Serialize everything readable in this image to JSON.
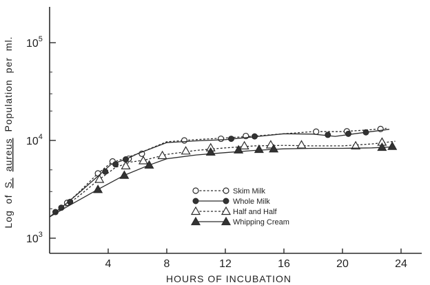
{
  "chart_data": {
    "type": "line",
    "title": "",
    "xlabel": "HOURS   OF   INCUBATION",
    "ylabel_parts": [
      "Log",
      "of",
      "S.",
      "aureus",
      "Population",
      "per",
      "ml."
    ],
    "xlim": [
      0,
      25
    ],
    "ylim": [
      1000,
      150000
    ],
    "yscale": "log",
    "grid": false,
    "legend_position": "center-right",
    "x_ticks": [
      4,
      8,
      12,
      16,
      20,
      24
    ],
    "x_tick_labels": [
      "4",
      "8",
      "12",
      "16",
      "20",
      "24"
    ],
    "y_ticks": [
      1000,
      10000,
      100000
    ],
    "y_tick_labels": [
      {
        "base": "10",
        "exp": "3"
      },
      {
        "base": "10",
        "exp": "4"
      },
      {
        "base": "10",
        "exp": "5"
      }
    ],
    "series": [
      {
        "name": "Skim  Milk",
        "marker": "open-circle",
        "line_style": "dashed",
        "line_x": [
          0,
          0.6,
          1.2,
          2.0,
          3.3,
          4.2,
          5.2,
          6.0,
          8.0,
          10.0,
          12.0,
          14.0,
          16.0,
          18.0,
          20.0,
          22.0,
          23.0
        ],
        "line_y": [
          1650,
          1950,
          2300,
          2950,
          4600,
          5900,
          6600,
          7300,
          9700,
          10200,
          10600,
          11100,
          11700,
          12300,
          12300,
          12900,
          13300
        ],
        "x": [
          1.2,
          3.3,
          4.3,
          5.4,
          6.3,
          9.2,
          11.7,
          13.4,
          18.2,
          20.3,
          22.6
        ],
        "y": [
          2300,
          4600,
          6100,
          6500,
          7300,
          10000,
          10400,
          11100,
          12300,
          12400,
          13100
        ]
      },
      {
        "name": "Whole  Milk",
        "marker": "filled-circle",
        "line_style": "solid",
        "line_x": [
          0,
          0.6,
          1.2,
          2.0,
          3.3,
          4.2,
          5.2,
          6.0,
          8.0,
          10.0,
          12.0,
          14.0,
          16.0,
          18.0,
          19.5,
          21.0,
          23.2
        ],
        "line_y": [
          1650,
          1950,
          2300,
          2900,
          4300,
          5700,
          6400,
          7300,
          9500,
          9900,
          10200,
          10900,
          11700,
          11600,
          11000,
          11800,
          13000
        ],
        "x": [
          0.4,
          0.8,
          1.4,
          3.8,
          4.5,
          5.2,
          12.4,
          14.0,
          19.0,
          20.4,
          21.6
        ],
        "y": [
          1850,
          2050,
          2350,
          4800,
          5700,
          6400,
          10400,
          11000,
          11400,
          11700,
          12100
        ]
      },
      {
        "name": "Half  and  Half",
        "marker": "open-triangle",
        "line_style": "dashed",
        "line_x": [
          0,
          1.2,
          2.0,
          3.3,
          4.5,
          5.5,
          6.5,
          8.0,
          10.0,
          12.0,
          14.0,
          16.0,
          18.0,
          20.0,
          22.0,
          23.6
        ],
        "line_y": [
          1650,
          2200,
          2700,
          3900,
          5300,
          6000,
          6300,
          7200,
          7900,
          8400,
          8800,
          8900,
          8800,
          8800,
          9200,
          9800
        ],
        "x": [
          3.4,
          5.2,
          6.4,
          7.7,
          9.3,
          11.0,
          13.3,
          15.1,
          17.2,
          20.9,
          22.7
        ],
        "y": [
          4000,
          5500,
          6200,
          7000,
          7800,
          8400,
          8800,
          9000,
          9000,
          8800,
          9600
        ]
      },
      {
        "name": "Whipping  Cream",
        "marker": "filled-triangle",
        "line_style": "solid",
        "line_x": [
          0,
          1.2,
          2.0,
          3.3,
          5.1,
          6.8,
          8.0,
          10.0,
          12.0,
          14.0,
          16.0,
          18.0,
          20.0,
          22.0,
          23.5
        ],
        "line_y": [
          1650,
          2100,
          2450,
          3150,
          4400,
          5600,
          6500,
          7100,
          7500,
          7900,
          8200,
          8300,
          8300,
          8400,
          8600
        ],
        "x": [
          3.3,
          5.1,
          6.8,
          11.0,
          12.9,
          14.3,
          15.3,
          22.7,
          23.4
        ],
        "y": [
          3150,
          4400,
          5600,
          7600,
          8000,
          8100,
          8200,
          8500,
          8700
        ]
      }
    ]
  }
}
